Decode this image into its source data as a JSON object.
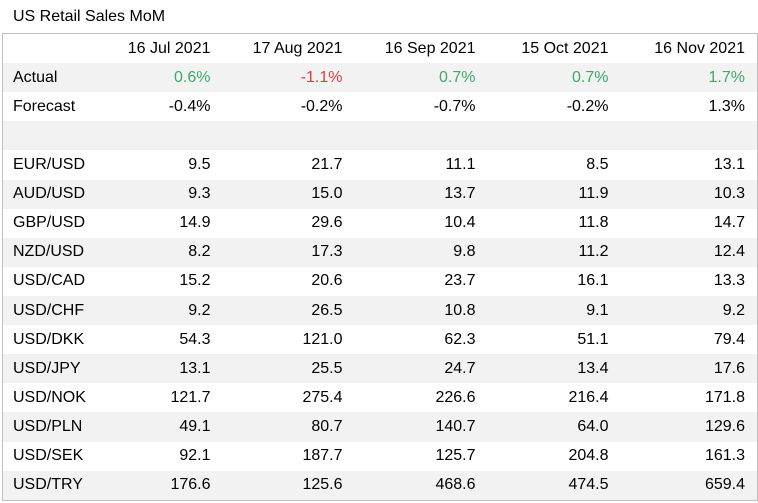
{
  "title": "US Retail Sales MoM",
  "columns": [
    "16 Jul 2021",
    "17 Aug 2021",
    "16 Sep 2021",
    "15 Oct 2021",
    "16 Nov 2021"
  ],
  "actual": {
    "label": "Actual",
    "values": [
      "0.6%",
      "-1.1%",
      "0.7%",
      "0.7%",
      "1.7%"
    ],
    "colors": [
      "pos",
      "neg",
      "pos",
      "pos",
      "pos"
    ]
  },
  "forecast": {
    "label": "Forecast",
    "values": [
      "-0.4%",
      "-0.2%",
      "-0.7%",
      "-0.2%",
      "1.3%"
    ]
  },
  "pairs": [
    {
      "label": "EUR/USD",
      "values": [
        "9.5",
        "21.7",
        "11.1",
        "8.5",
        "13.1"
      ]
    },
    {
      "label": "AUD/USD",
      "values": [
        "9.3",
        "15.0",
        "13.7",
        "11.9",
        "10.3"
      ]
    },
    {
      "label": "GBP/USD",
      "values": [
        "14.9",
        "29.6",
        "10.4",
        "11.8",
        "14.7"
      ]
    },
    {
      "label": "NZD/USD",
      "values": [
        "8.2",
        "17.3",
        "9.8",
        "11.2",
        "12.4"
      ]
    },
    {
      "label": "USD/CAD",
      "values": [
        "15.2",
        "20.6",
        "23.7",
        "16.1",
        "13.3"
      ]
    },
    {
      "label": "USD/CHF",
      "values": [
        "9.2",
        "26.5",
        "10.8",
        "9.1",
        "9.2"
      ]
    },
    {
      "label": "USD/DKK",
      "values": [
        "54.3",
        "121.0",
        "62.3",
        "51.1",
        "79.4"
      ]
    },
    {
      "label": "USD/JPY",
      "values": [
        "13.1",
        "25.5",
        "24.7",
        "13.4",
        "17.6"
      ]
    },
    {
      "label": "USD/NOK",
      "values": [
        "121.7",
        "275.4",
        "226.6",
        "216.4",
        "171.8"
      ]
    },
    {
      "label": "USD/PLN",
      "values": [
        "49.1",
        "80.7",
        "140.7",
        "64.0",
        "129.6"
      ]
    },
    {
      "label": "USD/SEK",
      "values": [
        "92.1",
        "187.7",
        "125.7",
        "204.8",
        "161.3"
      ]
    },
    {
      "label": "USD/TRY",
      "values": [
        "176.6",
        "125.6",
        "468.6",
        "474.5",
        "659.4"
      ]
    }
  ],
  "colors": {
    "positive": "#3cab6a",
    "negative": "#e03c3c",
    "stripe": "#f2f2f2",
    "border": "#bfbfbf"
  }
}
